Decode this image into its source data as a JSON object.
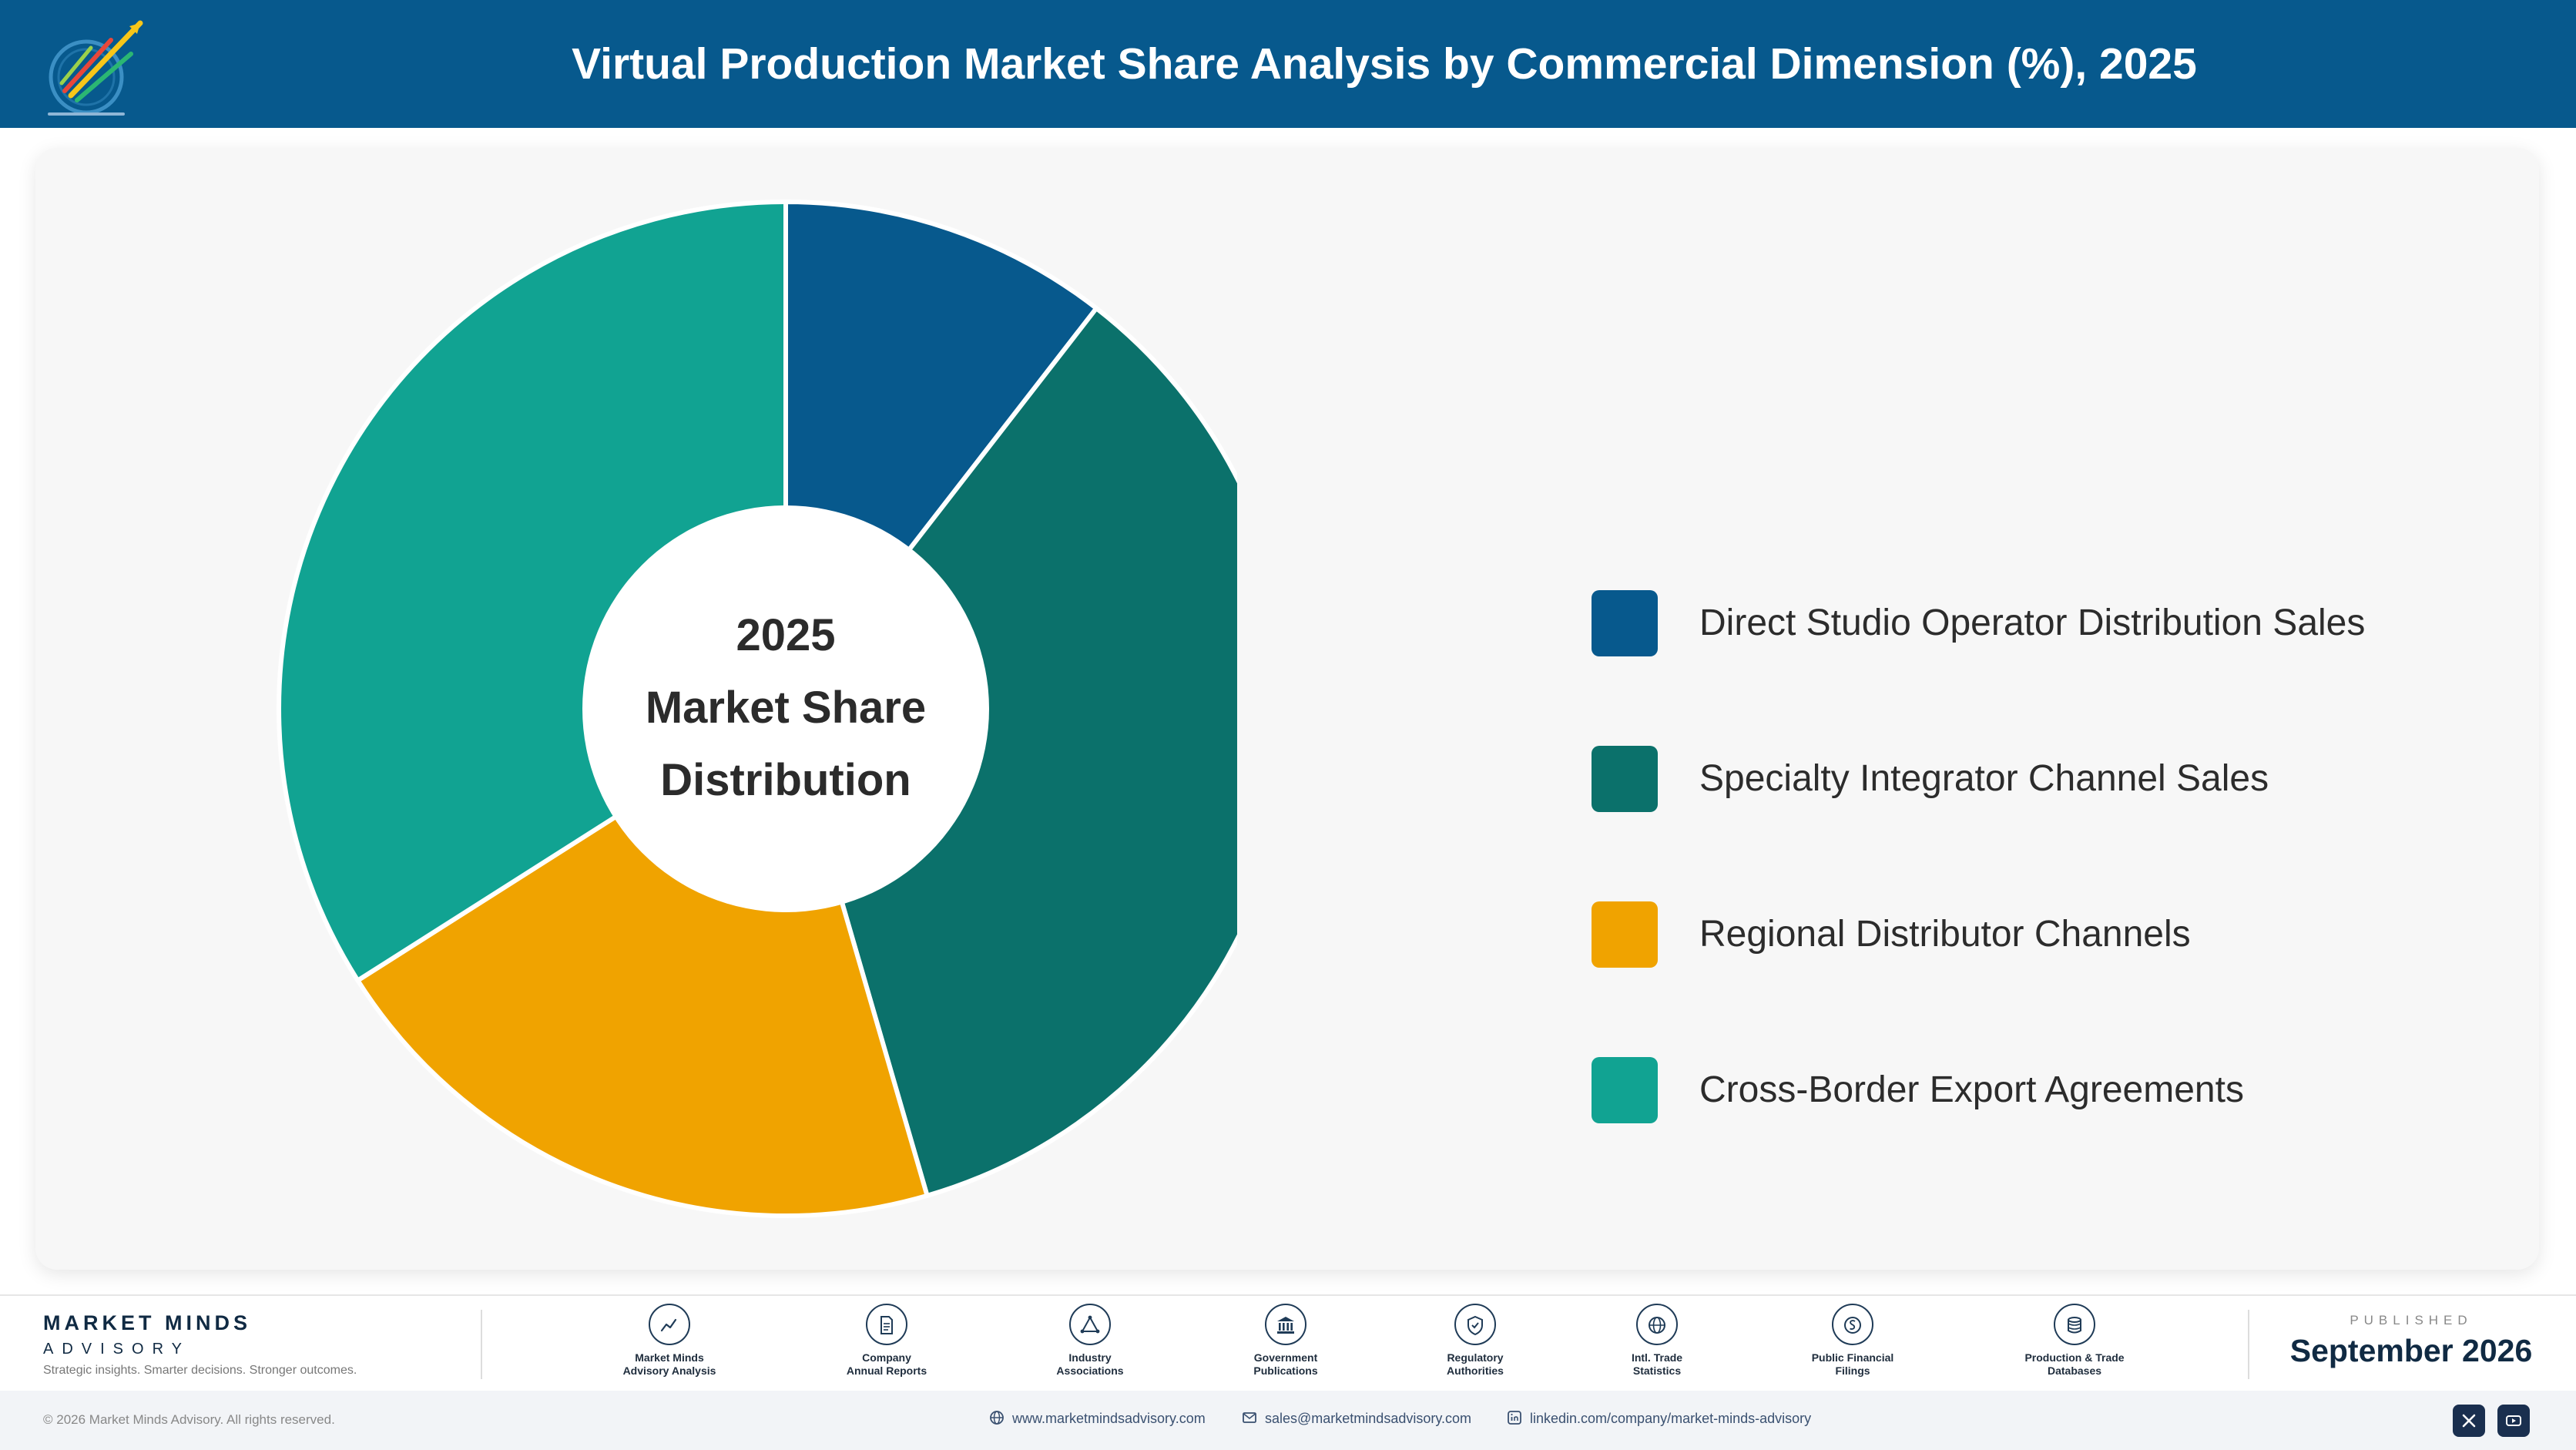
{
  "header": {
    "title": "Virtual Production Market Share Analysis by Commercial Dimension (%), 2025"
  },
  "chart_data": {
    "type": "pie",
    "title": "Virtual Production Market Share Analysis by Commercial Dimension (%), 2025",
    "center_label": [
      "2025",
      "Market Share",
      "Distribution"
    ],
    "categories": [
      "Direct Studio Operator Distribution Sales",
      "Specialty Integrator Channel Sales",
      "Regional Distributor Channels",
      "Cross-Border Export Agreements"
    ],
    "values": [
      10.5,
      35,
      20.5,
      34
    ],
    "colors": [
      "#07598d",
      "#0b716b",
      "#f0a300",
      "#11a392"
    ],
    "legend_position": "right"
  },
  "footer": {
    "brand_name": "MARKET MINDS",
    "brand_sub": "ADVISORY",
    "tagline": "Strategic insights. Smarter decisions. Stronger outcomes.",
    "sources": [
      {
        "line1": "Market Minds",
        "line2": "Advisory Analysis",
        "icon": "chart-icon"
      },
      {
        "line1": "Company",
        "line2": "Annual Reports",
        "icon": "document-icon"
      },
      {
        "line1": "Industry",
        "line2": "Associations",
        "icon": "network-icon"
      },
      {
        "line1": "Government",
        "line2": "Publications",
        "icon": "government-icon"
      },
      {
        "line1": "Regulatory",
        "line2": "Authorities",
        "icon": "shield-icon"
      },
      {
        "line1": "Intl. Trade",
        "line2": "Statistics",
        "icon": "globe-icon"
      },
      {
        "line1": "Public Financial",
        "line2": "Filings",
        "icon": "coin-icon"
      },
      {
        "line1": "Production & Trade",
        "line2": "Databases",
        "icon": "database-icon"
      }
    ],
    "published_label": "PUBLISHED",
    "published_date": "September 2026",
    "copyright": "© 2026 Market Minds Advisory. All rights reserved.",
    "website": "www.marketmindsadvisory.com",
    "email": "sales@marketmindsadvisory.com",
    "linkedin": "linkedin.com/company/market-minds-advisory"
  }
}
